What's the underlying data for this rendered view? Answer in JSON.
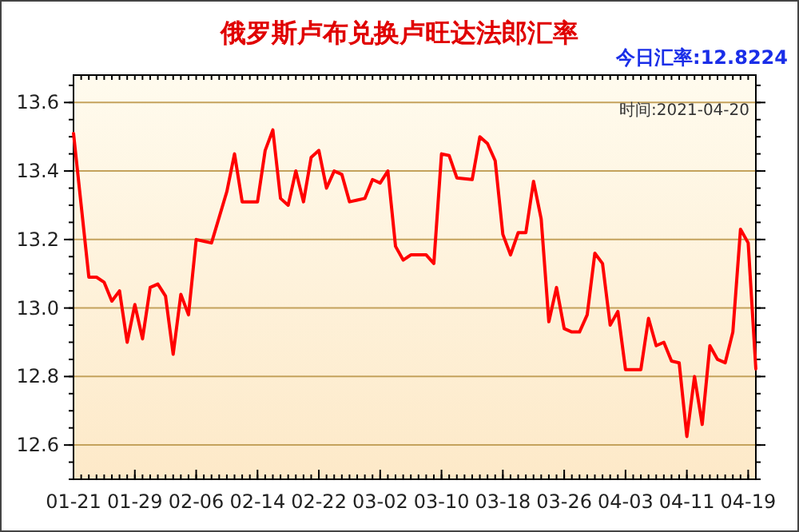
{
  "chart_data": {
    "type": "line",
    "title": "俄罗斯卢布兑换卢旺达法郎汇率",
    "annotations": [
      "今日汇率:12.8224",
      "时间:2021-04-20"
    ],
    "x": [
      "2021-01-21",
      "2021-01-23",
      "2021-01-24",
      "2021-01-25",
      "2021-01-26",
      "2021-01-27",
      "2021-01-28",
      "2021-01-29",
      "2021-01-30",
      "2021-01-31",
      "2021-02-01",
      "2021-02-02",
      "2021-02-03",
      "2021-02-04",
      "2021-02-05",
      "2021-02-06",
      "2021-02-07",
      "2021-02-08",
      "2021-02-10",
      "2021-02-11",
      "2021-02-12",
      "2021-02-14",
      "2021-02-15",
      "2021-02-16",
      "2021-02-17",
      "2021-02-18",
      "2021-02-19",
      "2021-02-20",
      "2021-02-21",
      "2021-02-22",
      "2021-02-23",
      "2021-02-24",
      "2021-02-25",
      "2021-02-26",
      "2021-02-27",
      "2021-02-28",
      "2021-03-01",
      "2021-03-02",
      "2021-03-03",
      "2021-03-04",
      "2021-03-05",
      "2021-03-06",
      "2021-03-08",
      "2021-03-09",
      "2021-03-10",
      "2021-03-11",
      "2021-03-12",
      "2021-03-14",
      "2021-03-15",
      "2021-03-16",
      "2021-03-17",
      "2021-03-18",
      "2021-03-19",
      "2021-03-20",
      "2021-03-21",
      "2021-03-22",
      "2021-03-23",
      "2021-03-24",
      "2021-03-25",
      "2021-03-26",
      "2021-03-27",
      "2021-03-28",
      "2021-03-29",
      "2021-03-30",
      "2021-03-31",
      "2021-04-01",
      "2021-04-02",
      "2021-04-03",
      "2021-04-05",
      "2021-04-06",
      "2021-04-07",
      "2021-04-08",
      "2021-04-09",
      "2021-04-10",
      "2021-04-11",
      "2021-04-12",
      "2021-04-13",
      "2021-04-14",
      "2021-04-15",
      "2021-04-16",
      "2021-04-17",
      "2021-04-18",
      "2021-04-19",
      "2021-04-20"
    ],
    "series": [
      {
        "color": "#ff0000",
        "values": [
          13.51,
          13.09,
          13.09,
          13.075,
          13.02,
          13.05,
          12.9,
          13.01,
          12.91,
          13.06,
          13.07,
          13.035,
          12.865,
          13.04,
          12.98,
          13.2,
          13.195,
          13.19,
          13.34,
          13.45,
          13.31,
          13.31,
          13.46,
          13.52,
          13.32,
          13.3,
          13.4,
          13.31,
          13.44,
          13.46,
          13.35,
          13.4,
          13.39,
          13.31,
          13.315,
          13.32,
          13.375,
          13.365,
          13.4,
          13.18,
          13.14,
          13.155,
          13.155,
          13.13,
          13.45,
          13.445,
          13.38,
          13.375,
          13.5,
          13.48,
          13.43,
          13.215,
          13.155,
          13.22,
          13.22,
          13.37,
          13.26,
          12.96,
          13.06,
          12.94,
          12.93,
          12.93,
          12.98,
          13.16,
          13.13,
          12.95,
          12.99,
          12.82,
          12.82,
          12.97,
          12.89,
          12.9,
          12.845,
          12.84,
          12.625,
          12.8,
          12.66,
          12.89,
          12.85,
          12.84,
          12.93,
          13.23,
          13.19,
          12.8224
        ]
      }
    ],
    "xlim": [
      "2021-01-21",
      "2021-04-20"
    ],
    "xticks": [
      {
        "value": "2021-01-21",
        "label": "01-21"
      },
      {
        "value": "2021-01-29",
        "label": "01-29"
      },
      {
        "value": "2021-02-06",
        "label": "02-06"
      },
      {
        "value": "2021-02-14",
        "label": "02-14"
      },
      {
        "value": "2021-02-22",
        "label": "02-22"
      },
      {
        "value": "2021-03-02",
        "label": "03-02"
      },
      {
        "value": "2021-03-10",
        "label": "03-10"
      },
      {
        "value": "2021-03-18",
        "label": "03-18"
      },
      {
        "value": "2021-03-26",
        "label": "03-26"
      },
      {
        "value": "2021-04-03",
        "label": "04-03"
      },
      {
        "value": "2021-04-11",
        "label": "04-11"
      },
      {
        "value": "2021-04-19",
        "label": "04-19"
      }
    ],
    "ylim": [
      12.5,
      13.68
    ],
    "yticks": [
      12.6,
      12.8,
      {
        "value": 13,
        "label": "13.0"
      },
      13.2,
      13.4,
      13.6
    ],
    "grid": "y",
    "marker": "none",
    "line_style": "solid"
  }
}
